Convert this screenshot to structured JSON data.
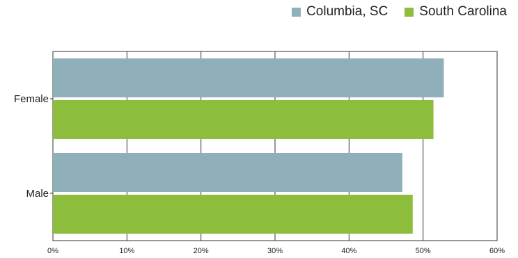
{
  "chart_data": {
    "type": "bar",
    "orientation": "horizontal",
    "categories": [
      "Female",
      "Male"
    ],
    "series": [
      {
        "name": "Columbia, SC",
        "color": "#8fafbb",
        "values": [
          52.8,
          47.2
        ]
      },
      {
        "name": "South Carolina",
        "color": "#8dbd3c",
        "values": [
          51.4,
          48.6
        ]
      }
    ],
    "xlim": [
      0,
      60
    ],
    "x_ticks": [
      "0%",
      "10%",
      "20%",
      "30%",
      "40%",
      "50%",
      "60%"
    ],
    "grid": true,
    "legend_position": "top-right"
  }
}
